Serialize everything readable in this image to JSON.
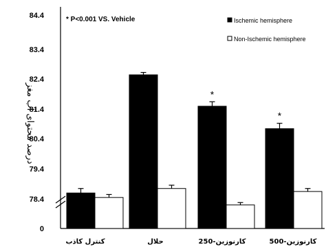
{
  "chart_data": {
    "type": "bar",
    "ylabel": "درصد محتوای آب مغز",
    "annotation": "* P<0.001 VS. Vehicle",
    "yticks": [
      "84.4",
      "83.4",
      "82.4",
      "81.4",
      "80.4",
      "79.4",
      "78.4",
      "0"
    ],
    "ylim": [
      78.0,
      84.4
    ],
    "axis_break": true,
    "legend_position": "top-right",
    "categories": [
      "کنترل کاذب",
      "حلال",
      "کارنوزین-250",
      "کارنوزین-500"
    ],
    "series": [
      {
        "name": "Ischemic hemisphere",
        "color": "#000000",
        "values": [
          78.6,
          82.55,
          81.5,
          80.75
        ],
        "errors": [
          0.15,
          0.08,
          0.15,
          0.18
        ],
        "significance": [
          "",
          "",
          "*",
          "*"
        ]
      },
      {
        "name": "Non-Ischemic hemisphere",
        "color": "#ffffff",
        "values": [
          78.45,
          78.75,
          78.2,
          78.65
        ],
        "errors": [
          0.1,
          0.11,
          0.08,
          0.1
        ],
        "significance": [
          "",
          "",
          "",
          ""
        ]
      }
    ]
  }
}
